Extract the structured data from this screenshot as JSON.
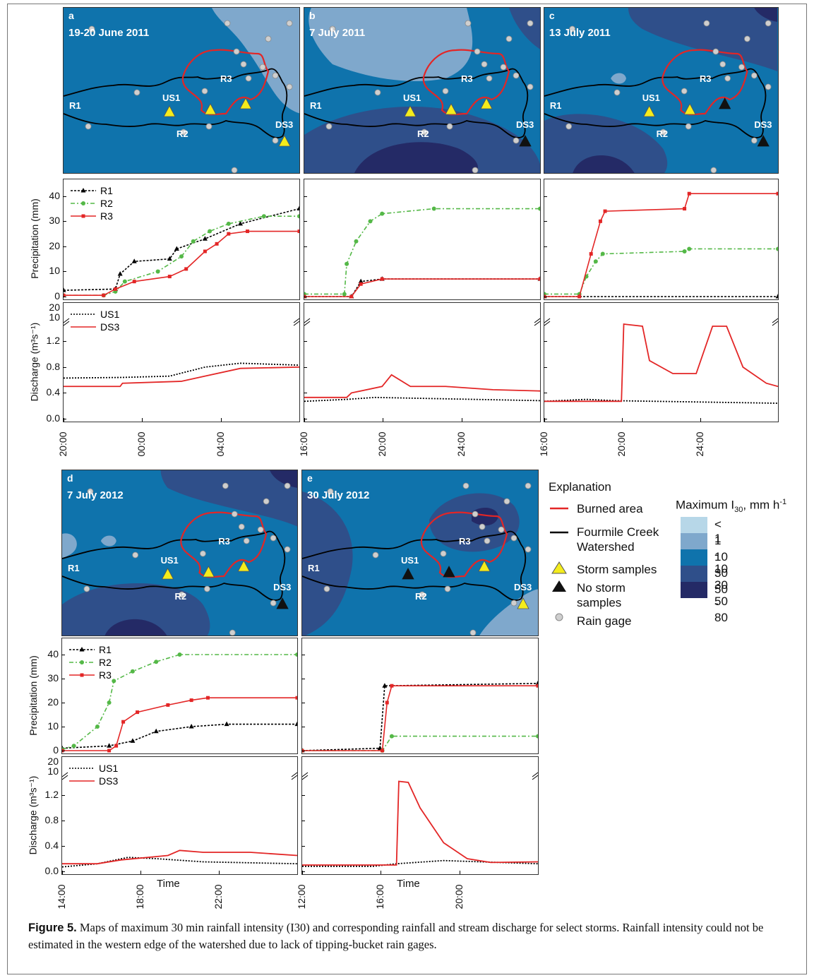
{
  "figure": {
    "caption_label": "Figure 5.",
    "caption_text": "Maps of maximum 30 min rainfall intensity (I30) and corresponding rainfall and stream discharge for select storms. Rainfall intensity could not be estimated in the western edge of the watershed due to lack of tipping-bucket rain gages."
  },
  "colors": {
    "c_lt1": "#b7d7e8",
    "c_1_10": "#7fa8cc",
    "c_10_30": "#0f73ac",
    "c_30_50": "#2f4f8a",
    "c_50_80": "#242a66",
    "burn": "#e32626",
    "watershed": "#000000",
    "r1": "#000000",
    "r2": "#54b847",
    "r3": "#e32626"
  },
  "panels": [
    {
      "letter": "a",
      "date": "19-20 June 2011"
    },
    {
      "letter": "b",
      "date": "7 July 2011"
    },
    {
      "letter": "c",
      "date": "13 July 2011"
    },
    {
      "letter": "d",
      "date": "7 July 2012"
    },
    {
      "letter": "e",
      "date": "30 July 2012"
    }
  ],
  "map_labels": {
    "R1": "R1",
    "R2": "R2",
    "R3": "R3",
    "US1": "US1",
    "DS3": "DS3"
  },
  "axes": {
    "precip_label": "Precipitation (mm)",
    "discharge_label": "Discharge (m³s⁻¹)",
    "time_label": "Time",
    "precip_ticks": [
      "0",
      "10",
      "20",
      "30",
      "40"
    ],
    "discharge_ticks": [
      "0.0",
      "0.4",
      "0.8",
      "1.2"
    ],
    "discharge_upper_ticks": [
      "10",
      "20"
    ],
    "x_ticks_a": [
      "20:00",
      "00:00",
      "04:00"
    ],
    "x_ticks_bc": [
      "16:00",
      "20:00",
      "24:00"
    ],
    "x_ticks_d": [
      "14:00",
      "18:00",
      "22:00"
    ],
    "x_ticks_e": [
      "12:00",
      "16:00",
      "20:00"
    ]
  },
  "series_legend": {
    "r1": "R1",
    "r2": "R2",
    "r3": "R3",
    "us1": "US1",
    "ds3": "DS3"
  },
  "explanation": {
    "title": "Explanation",
    "burned": "Burned area",
    "watershed_l1": "Fourmile Creek",
    "watershed_l2": "Watershed",
    "storm": "Storm samples",
    "nostorm_l1": "No storm",
    "nostorm_l2": "samples",
    "gage": "Rain gage"
  },
  "intensity_scale": {
    "title": "Maximum I",
    "title_sub": "30",
    "title_unit": ", mm h",
    "title_sup": "-1",
    "bins": [
      {
        "label": "< 1",
        "color": "#b7d7e8"
      },
      {
        "label": "1 - 10",
        "color": "#7fa8cc"
      },
      {
        "label": "10 - 30",
        "color": "#0f73ac"
      },
      {
        "label": "30 - 50",
        "color": "#2f4f8a"
      },
      {
        "label": "50 - 80",
        "color": "#242a66"
      }
    ]
  },
  "chart_data": [
    {
      "type": "line",
      "panel": "a",
      "title": "",
      "xlabel": "",
      "ylabel": "Precipitation (mm)",
      "ylim": [
        0,
        45
      ],
      "x_ticks": [
        "20:00",
        "00:00",
        "04:00"
      ],
      "series": [
        {
          "name": "R1",
          "points": [
            [
              0,
              2.5
            ],
            [
              0.22,
              3
            ],
            [
              0.24,
              9
            ],
            [
              0.3,
              14
            ],
            [
              0.45,
              15
            ],
            [
              0.48,
              19
            ],
            [
              0.6,
              23
            ],
            [
              0.75,
              29
            ],
            [
              1,
              35
            ]
          ]
        },
        {
          "name": "R2",
          "points": [
            [
              0,
              0.5
            ],
            [
              0.17,
              0.5
            ],
            [
              0.22,
              2
            ],
            [
              0.26,
              6
            ],
            [
              0.4,
              10
            ],
            [
              0.5,
              16
            ],
            [
              0.55,
              22
            ],
            [
              0.62,
              26
            ],
            [
              0.7,
              29
            ],
            [
              0.85,
              32
            ],
            [
              1,
              32
            ]
          ]
        },
        {
          "name": "R3",
          "points": [
            [
              0,
              0.5
            ],
            [
              0.17,
              0.5
            ],
            [
              0.22,
              3
            ],
            [
              0.3,
              6
            ],
            [
              0.45,
              8
            ],
            [
              0.52,
              11
            ],
            [
              0.6,
              18
            ],
            [
              0.65,
              21
            ],
            [
              0.7,
              25
            ],
            [
              0.78,
              26
            ],
            [
              1,
              26
            ]
          ]
        }
      ]
    },
    {
      "type": "line",
      "panel": "a",
      "title": "",
      "xlabel": "",
      "ylabel": "Discharge (m³s⁻¹)",
      "ylim": [
        0,
        1.4
      ],
      "x_ticks": [
        "20:00",
        "00:00",
        "04:00"
      ],
      "series": [
        {
          "name": "US1",
          "points": [
            [
              0,
              0.63
            ],
            [
              0.25,
              0.64
            ],
            [
              0.45,
              0.66
            ],
            [
              0.6,
              0.8
            ],
            [
              0.75,
              0.86
            ],
            [
              1,
              0.83
            ]
          ]
        },
        {
          "name": "DS3",
          "points": [
            [
              0,
              0.5
            ],
            [
              0.24,
              0.5
            ],
            [
              0.25,
              0.55
            ],
            [
              0.5,
              0.58
            ],
            [
              0.6,
              0.66
            ],
            [
              0.75,
              0.78
            ],
            [
              1,
              0.8
            ]
          ]
        }
      ]
    },
    {
      "type": "line",
      "panel": "b",
      "title": "",
      "xlabel": "",
      "ylabel": "Precipitation (mm)",
      "ylim": [
        0,
        45
      ],
      "x_ticks": [
        "16:00",
        "20:00",
        "24:00"
      ],
      "series": [
        {
          "name": "R1",
          "points": [
            [
              0,
              0
            ],
            [
              0.2,
              0
            ],
            [
              0.24,
              6
            ],
            [
              0.33,
              7
            ],
            [
              1,
              7
            ]
          ]
        },
        {
          "name": "R2",
          "points": [
            [
              0,
              1
            ],
            [
              0.17,
              1
            ],
            [
              0.18,
              13
            ],
            [
              0.22,
              22
            ],
            [
              0.28,
              30
            ],
            [
              0.33,
              33
            ],
            [
              0.55,
              35
            ],
            [
              1,
              35
            ]
          ]
        },
        {
          "name": "R3",
          "points": [
            [
              0,
              0
            ],
            [
              0.2,
              0
            ],
            [
              0.24,
              5
            ],
            [
              0.33,
              7
            ],
            [
              1,
              7
            ]
          ]
        }
      ]
    },
    {
      "type": "line",
      "panel": "b",
      "title": "",
      "xlabel": "",
      "ylabel": "Discharge (m³s⁻¹)",
      "ylim": [
        0,
        1.4
      ],
      "x_ticks": [
        "16:00",
        "20:00",
        "24:00"
      ],
      "series": [
        {
          "name": "US1",
          "points": [
            [
              0,
              0.27
            ],
            [
              0.18,
              0.3
            ],
            [
              0.3,
              0.33
            ],
            [
              1,
              0.28
            ]
          ]
        },
        {
          "name": "DS3",
          "points": [
            [
              0,
              0.33
            ],
            [
              0.18,
              0.33
            ],
            [
              0.2,
              0.4
            ],
            [
              0.33,
              0.5
            ],
            [
              0.37,
              0.68
            ],
            [
              0.45,
              0.5
            ],
            [
              0.6,
              0.5
            ],
            [
              0.8,
              0.45
            ],
            [
              1,
              0.43
            ]
          ]
        }
      ]
    },
    {
      "type": "line",
      "panel": "c",
      "title": "",
      "xlabel": "",
      "ylabel": "Precipitation (mm)",
      "ylim": [
        0,
        45
      ],
      "x_ticks": [
        "16:00",
        "20:00",
        "24:00"
      ],
      "series": [
        {
          "name": "R1",
          "points": [
            [
              0,
              0
            ],
            [
              1,
              0
            ]
          ]
        },
        {
          "name": "R2",
          "points": [
            [
              0,
              1
            ],
            [
              0.15,
              1
            ],
            [
              0.18,
              8
            ],
            [
              0.22,
              14
            ],
            [
              0.25,
              17
            ],
            [
              0.6,
              18
            ],
            [
              0.62,
              19
            ],
            [
              1,
              19
            ]
          ]
        },
        {
          "name": "R3",
          "points": [
            [
              0,
              0
            ],
            [
              0.15,
              0
            ],
            [
              0.2,
              17
            ],
            [
              0.24,
              30
            ],
            [
              0.26,
              34
            ],
            [
              0.6,
              35
            ],
            [
              0.62,
              41
            ],
            [
              1,
              41
            ]
          ]
        }
      ]
    },
    {
      "type": "line",
      "panel": "c",
      "title": "",
      "xlabel": "",
      "ylabel": "Discharge (m³s⁻¹)",
      "ylim": [
        0,
        1.4
      ],
      "x_ticks": [
        "16:00",
        "20:00",
        "24:00"
      ],
      "series": [
        {
          "name": "US1",
          "points": [
            [
              0,
              0.27
            ],
            [
              0.18,
              0.3
            ],
            [
              0.3,
              0.28
            ],
            [
              1,
              0.24
            ]
          ]
        },
        {
          "name": "DS3",
          "points": [
            [
              0,
              0.27
            ],
            [
              0.33,
              0.27
            ],
            [
              0.34,
              1.6
            ],
            [
              0.42,
              1.5
            ],
            [
              0.45,
              0.9
            ],
            [
              0.55,
              0.7
            ],
            [
              0.65,
              0.7
            ],
            [
              0.72,
              1.5
            ],
            [
              0.78,
              1.5
            ],
            [
              0.85,
              0.8
            ],
            [
              0.95,
              0.55
            ],
            [
              1,
              0.5
            ]
          ]
        }
      ]
    },
    {
      "type": "line",
      "panel": "d",
      "title": "",
      "xlabel": "Time",
      "ylabel": "Precipitation (mm)",
      "ylim": [
        0,
        45
      ],
      "x_ticks": [
        "14:00",
        "18:00",
        "22:00"
      ],
      "series": [
        {
          "name": "R1",
          "points": [
            [
              0,
              1
            ],
            [
              0.2,
              2
            ],
            [
              0.3,
              4
            ],
            [
              0.4,
              8
            ],
            [
              0.55,
              10
            ],
            [
              0.7,
              11
            ],
            [
              1,
              11
            ]
          ]
        },
        {
          "name": "R2",
          "points": [
            [
              0,
              0.5
            ],
            [
              0.05,
              2
            ],
            [
              0.15,
              10
            ],
            [
              0.2,
              20
            ],
            [
              0.22,
              29
            ],
            [
              0.3,
              33
            ],
            [
              0.4,
              37
            ],
            [
              0.5,
              40
            ],
            [
              1,
              40
            ]
          ]
        },
        {
          "name": "R3",
          "points": [
            [
              0,
              0
            ],
            [
              0.2,
              0
            ],
            [
              0.23,
              2
            ],
            [
              0.26,
              12
            ],
            [
              0.32,
              16
            ],
            [
              0.45,
              19
            ],
            [
              0.55,
              21
            ],
            [
              0.62,
              22
            ],
            [
              1,
              22
            ]
          ]
        }
      ]
    },
    {
      "type": "line",
      "panel": "d",
      "title": "",
      "xlabel": "Time",
      "ylabel": "Discharge (m³s⁻¹)",
      "ylim": [
        0,
        1.4
      ],
      "x_ticks": [
        "14:00",
        "18:00",
        "22:00"
      ],
      "series": [
        {
          "name": "US1",
          "points": [
            [
              0,
              0.07
            ],
            [
              0.15,
              0.12
            ],
            [
              0.28,
              0.22
            ],
            [
              0.4,
              0.2
            ],
            [
              0.6,
              0.15
            ],
            [
              1,
              0.12
            ]
          ]
        },
        {
          "name": "DS3",
          "points": [
            [
              0,
              0.12
            ],
            [
              0.15,
              0.12
            ],
            [
              0.25,
              0.18
            ],
            [
              0.45,
              0.25
            ],
            [
              0.5,
              0.33
            ],
            [
              0.6,
              0.3
            ],
            [
              0.8,
              0.3
            ],
            [
              1,
              0.25
            ]
          ]
        }
      ]
    },
    {
      "type": "line",
      "panel": "e",
      "title": "",
      "xlabel": "Time",
      "ylabel": "Precipitation (mm)",
      "ylim": [
        0,
        45
      ],
      "x_ticks": [
        "12:00",
        "16:00",
        "20:00"
      ],
      "series": [
        {
          "name": "R1",
          "points": [
            [
              0,
              0
            ],
            [
              0.33,
              1
            ],
            [
              0.35,
              27
            ],
            [
              1,
              28
            ]
          ]
        },
        {
          "name": "R2",
          "points": [
            [
              0,
              0
            ],
            [
              0.34,
              0
            ],
            [
              0.38,
              6
            ],
            [
              1,
              6
            ]
          ]
        },
        {
          "name": "R3",
          "points": [
            [
              0,
              0
            ],
            [
              0.34,
              0
            ],
            [
              0.36,
              20
            ],
            [
              0.38,
              27
            ],
            [
              1,
              27
            ]
          ]
        }
      ]
    },
    {
      "type": "line",
      "panel": "e",
      "title": "",
      "xlabel": "Time",
      "ylabel": "Discharge (m³s⁻¹)",
      "ylim": [
        0,
        1.4
      ],
      "x_ticks": [
        "12:00",
        "16:00",
        "20:00"
      ],
      "series": [
        {
          "name": "US1",
          "points": [
            [
              0,
              0.08
            ],
            [
              0.3,
              0.08
            ],
            [
              0.4,
              0.12
            ],
            [
              0.6,
              0.17
            ],
            [
              1,
              0.12
            ]
          ]
        },
        {
          "name": "DS3",
          "points": [
            [
              0,
              0.1
            ],
            [
              0.35,
              0.1
            ],
            [
              0.4,
              0.1
            ],
            [
              0.41,
              1.45
            ],
            [
              0.45,
              1.4
            ],
            [
              0.5,
              1.0
            ],
            [
              0.6,
              0.45
            ],
            [
              0.7,
              0.2
            ],
            [
              0.8,
              0.14
            ],
            [
              1,
              0.15
            ]
          ]
        }
      ]
    }
  ]
}
